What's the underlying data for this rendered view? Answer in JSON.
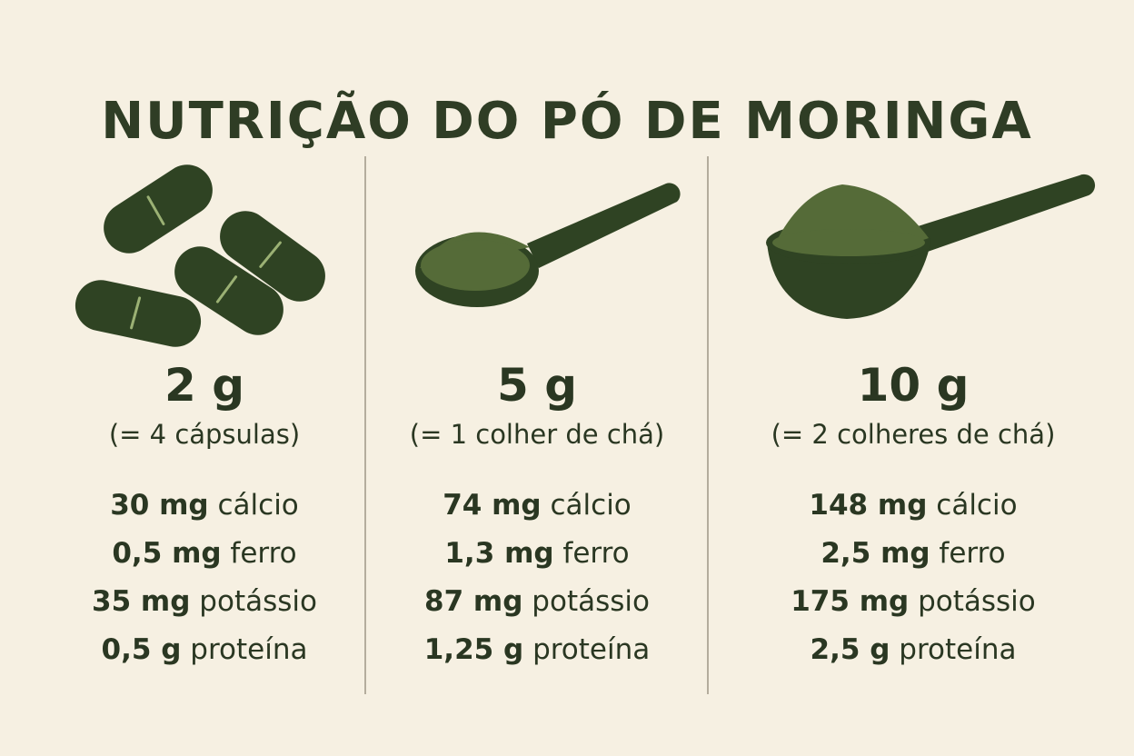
{
  "title": "NUTRIÇÃO DO PÓ DE MORINGA",
  "colors": {
    "background": "#f6f0e2",
    "text": "#2a3722",
    "capsule": "#2f4323",
    "powder": "#556b38",
    "divider": "#b4ad9d"
  },
  "columns": [
    {
      "amount": "2 g",
      "equivalent": "(= 4 cápsulas)",
      "icon": "capsules-icon",
      "nutrients": [
        {
          "quantity": "30 mg",
          "name": "cálcio"
        },
        {
          "quantity": "0,5 mg",
          "name": "ferro"
        },
        {
          "quantity": "35 mg",
          "name": "potássio"
        },
        {
          "quantity": "0,5 g",
          "name": "proteína"
        }
      ]
    },
    {
      "amount": "5 g",
      "equivalent": "(= 1 colher de chá)",
      "icon": "teaspoon-powder-icon",
      "nutrients": [
        {
          "quantity": "74 mg",
          "name": "cálcio"
        },
        {
          "quantity": "1,3 mg",
          "name": "ferro"
        },
        {
          "quantity": "87 mg",
          "name": "potássio"
        },
        {
          "quantity": "1,25 g",
          "name": "proteína"
        }
      ]
    },
    {
      "amount": "10 g",
      "equivalent": "(= 2 colheres de chá)",
      "icon": "heaped-spoon-powder-icon",
      "nutrients": [
        {
          "quantity": "148 mg",
          "name": "cálcio"
        },
        {
          "quantity": "2,5 mg",
          "name": "ferro"
        },
        {
          "quantity": "175 mg",
          "name": "potássio"
        },
        {
          "quantity": "2,5 g",
          "name": "proteína"
        }
      ]
    }
  ]
}
